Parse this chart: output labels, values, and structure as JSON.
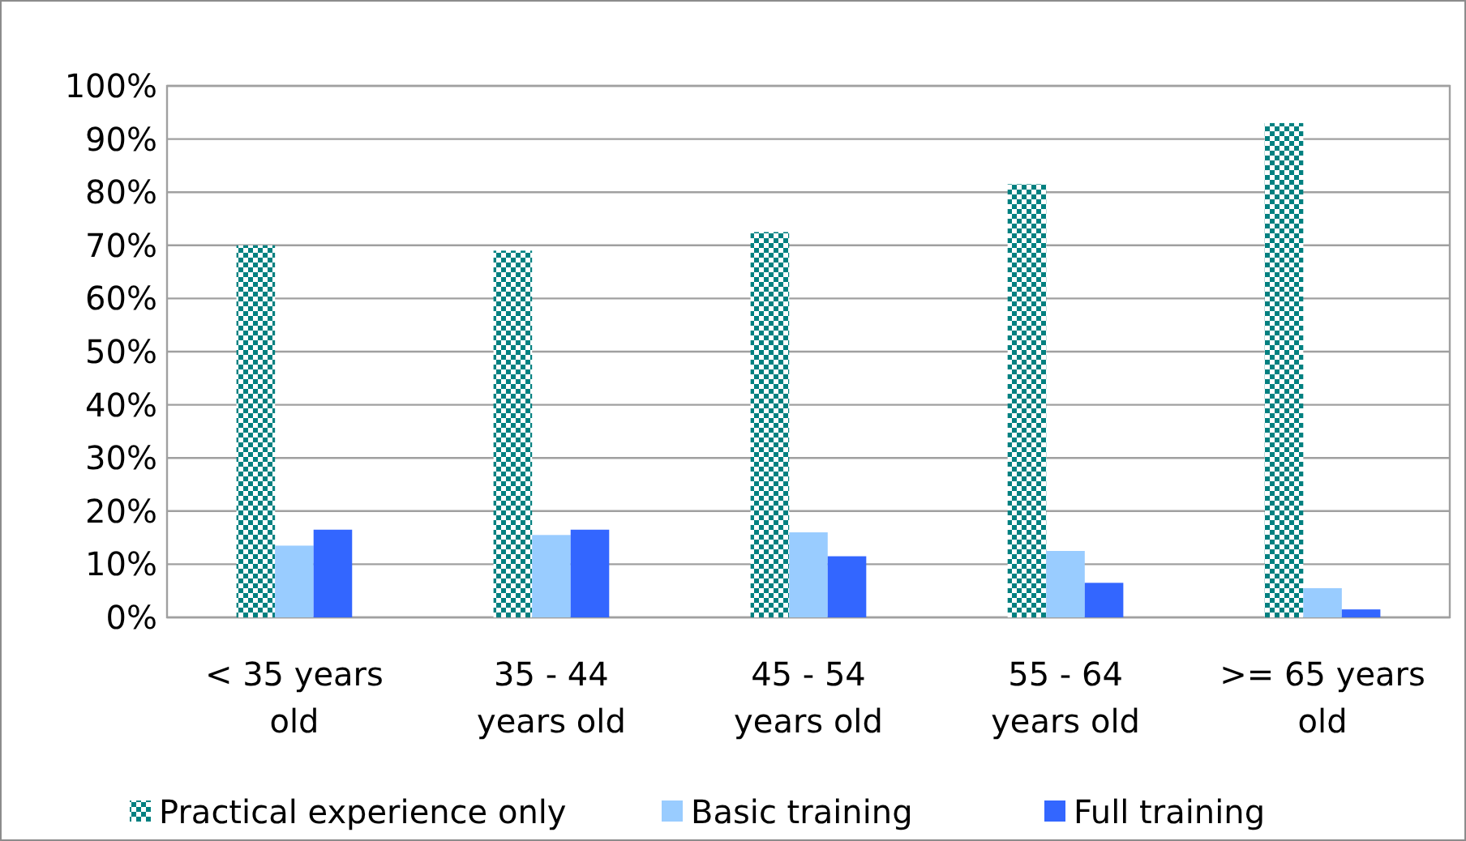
{
  "chart_data": {
    "type": "bar",
    "categories": [
      "< 35 years old",
      "35 - 44 years old",
      "45 - 54 years old",
      "55 - 64 years old",
      ">= 65 years old"
    ],
    "series": [
      {
        "name": "Practical experience only",
        "color": "#008080",
        "values": [
          70,
          69,
          72.5,
          81.5,
          93
        ]
      },
      {
        "name": "Basic training",
        "color": "#99ccff",
        "values": [
          13.5,
          15.5,
          16,
          12.5,
          5.5
        ]
      },
      {
        "name": "Full training",
        "color": "#3366ff",
        "values": [
          16.5,
          16.5,
          11.5,
          6.5,
          1.5
        ]
      }
    ],
    "ylim": [
      0,
      100
    ],
    "yticks": [
      {
        "value": 0,
        "label": "0%"
      },
      {
        "value": 10,
        "label": "10%"
      },
      {
        "value": 20,
        "label": "20%"
      },
      {
        "value": 30,
        "label": "30%"
      },
      {
        "value": 40,
        "label": "40%"
      },
      {
        "value": 50,
        "label": "50%"
      },
      {
        "value": 60,
        "label": "60%"
      },
      {
        "value": 70,
        "label": "70%"
      },
      {
        "value": 80,
        "label": "80%"
      },
      {
        "value": 90,
        "label": "90%"
      },
      {
        "value": 100,
        "label": "100%"
      }
    ],
    "grid": "y",
    "legend": "bottom"
  }
}
